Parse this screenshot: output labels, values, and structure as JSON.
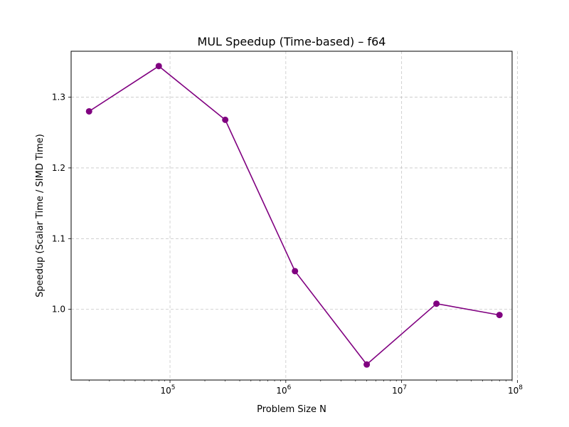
{
  "chart_data": {
    "type": "line",
    "title": "MUL Speedup (Time-based) – f64",
    "xlabel": "Problem Size N",
    "ylabel": "Speedup (Scalar Time / SIMD Time)",
    "xscale": "log",
    "xlim": [
      14000,
      90000000
    ],
    "ylim": [
      0.9,
      1.365
    ],
    "grid": true,
    "x_ticks": [
      {
        "value": 100000,
        "base": "10",
        "exp": "5"
      },
      {
        "value": 1000000,
        "base": "10",
        "exp": "6"
      },
      {
        "value": 10000000,
        "base": "10",
        "exp": "7"
      },
      {
        "value": 100000000,
        "base": "10",
        "exp": "8"
      }
    ],
    "y_ticks": [
      {
        "value": 1.0,
        "label": "1.0"
      },
      {
        "value": 1.1,
        "label": "1.1"
      },
      {
        "value": 1.2,
        "label": "1.2"
      },
      {
        "value": 1.3,
        "label": "1.3"
      }
    ],
    "series": [
      {
        "color": "#800080",
        "marker": "circle",
        "x": [
          20000,
          80000,
          300000,
          1200000,
          5000000,
          20000000,
          70000000
        ],
        "y": [
          1.28,
          1.344,
          1.268,
          1.054,
          0.922,
          1.008,
          0.992
        ]
      }
    ]
  }
}
